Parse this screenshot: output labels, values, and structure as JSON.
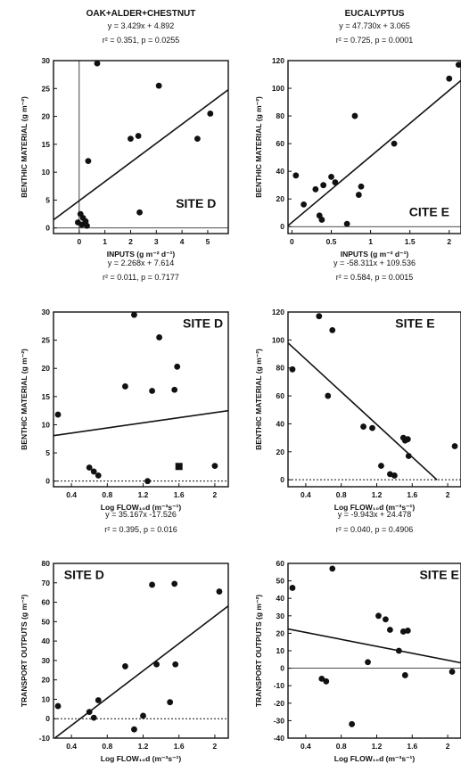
{
  "colors": {
    "ink": "#111111",
    "background": "#ffffff"
  },
  "chart_data": [
    {
      "id": "p1",
      "type": "scatter",
      "header": "OAK+ALDER+CHESTNUT",
      "equation": "y = 3.429x + 4.892",
      "stats": "r² = 0.351,  p = 0.0255",
      "site_label": "SITE   D",
      "xlabel": "INPUTS  (g  m⁻² d⁻¹)",
      "ylabel": "BENTHIC   MATERIAL  (g  m⁻²)",
      "xlim": [
        -1,
        5.8
      ],
      "ylim": [
        -1,
        30
      ],
      "xticks": [
        0,
        1,
        2,
        3,
        4,
        5
      ],
      "yticks": [
        0,
        5,
        10,
        15,
        20,
        25,
        30
      ],
      "zero_line": "solid",
      "zero_vline": true,
      "fit": {
        "slope": 3.429,
        "intercept": 4.892,
        "x_range": [
          -1,
          5.8
        ]
      },
      "points": [
        {
          "x": 0.7,
          "y": 29.5
        },
        {
          "x": 0.35,
          "y": 12
        },
        {
          "x": 2.3,
          "y": 16.5
        },
        {
          "x": 2.0,
          "y": 16
        },
        {
          "x": 3.1,
          "y": 25.5
        },
        {
          "x": 5.1,
          "y": 20.5
        },
        {
          "x": 4.6,
          "y": 16
        },
        {
          "x": 2.35,
          "y": 2.8
        },
        {
          "x": 0.05,
          "y": 2.5
        },
        {
          "x": 0.15,
          "y": 1.8
        },
        {
          "x": 0.25,
          "y": 1.2
        },
        {
          "x": -0.05,
          "y": 1.0
        },
        {
          "x": 0.1,
          "y": 0.6
        },
        {
          "x": 0.3,
          "y": 0.4
        }
      ]
    },
    {
      "id": "p2",
      "type": "scatter",
      "header": "EUCALYPTUS",
      "equation": "y = 47.730x + 3.065",
      "stats": "r² = 0.725,  p = 0.0001",
      "site_label": "CITE   E",
      "xlabel": "INPUTS  (g  m⁻² d⁻¹)",
      "ylabel": "BENTHIC   MATERIAL  (g  m⁻²)",
      "xlim": [
        -0.05,
        2.15
      ],
      "ylim": [
        -5,
        120
      ],
      "xticks": [
        0,
        0.5,
        1,
        1.5,
        2
      ],
      "yticks": [
        0,
        20,
        40,
        60,
        80,
        100,
        120
      ],
      "zero_line": "solid",
      "fit": {
        "slope": 47.73,
        "intercept": 3.065,
        "x_range": [
          -0.05,
          2.15
        ]
      },
      "points": [
        {
          "x": 0.05,
          "y": 37
        },
        {
          "x": 0.15,
          "y": 16
        },
        {
          "x": 0.3,
          "y": 27
        },
        {
          "x": 0.4,
          "y": 30
        },
        {
          "x": 0.5,
          "y": 36
        },
        {
          "x": 0.55,
          "y": 32
        },
        {
          "x": 0.35,
          "y": 8
        },
        {
          "x": 0.38,
          "y": 5
        },
        {
          "x": 0.8,
          "y": 80
        },
        {
          "x": 0.85,
          "y": 23
        },
        {
          "x": 0.88,
          "y": 29
        },
        {
          "x": 0.7,
          "y": 2
        },
        {
          "x": 1.3,
          "y": 60
        },
        {
          "x": 2.0,
          "y": 107
        },
        {
          "x": 2.12,
          "y": 117
        }
      ]
    },
    {
      "id": "p3",
      "type": "scatter",
      "header": "",
      "equation": "y = 2.268x + 7.614",
      "stats": "r² = 0.011,  p = 0.7177",
      "site_label": "SITE   D",
      "xlabel": "Log   FLOW₁₀d   (m⁻³s⁻¹)",
      "ylabel": "BENTHIC   MATERIAL  (g  m⁻²)",
      "xlim": [
        0.2,
        2.15
      ],
      "ylim": [
        -1,
        30
      ],
      "xticks": [
        0.4,
        0.8,
        1.2,
        1.6,
        2
      ],
      "yticks": [
        0,
        5,
        10,
        15,
        20,
        25,
        30
      ],
      "zero_line": "dotted",
      "fit": {
        "slope": 2.268,
        "intercept": 7.614,
        "x_range": [
          0.2,
          2.15
        ]
      },
      "points": [
        {
          "x": 0.25,
          "y": 11.8
        },
        {
          "x": 0.6,
          "y": 2.4
        },
        {
          "x": 0.65,
          "y": 1.7
        },
        {
          "x": 0.7,
          "y": 1.0
        },
        {
          "x": 1.0,
          "y": 16.8
        },
        {
          "x": 1.1,
          "y": 29.5
        },
        {
          "x": 1.3,
          "y": 16
        },
        {
          "x": 1.38,
          "y": 25.5
        },
        {
          "x": 1.55,
          "y": 16.2
        },
        {
          "x": 1.58,
          "y": 20.3
        },
        {
          "x": 1.25,
          "y": 0
        },
        {
          "x": 2.0,
          "y": 2.7
        }
      ],
      "square_points": [
        {
          "x": 1.6,
          "y": 2.6
        }
      ]
    },
    {
      "id": "p4",
      "type": "scatter",
      "header": "",
      "equation": "y = -58.311x + 109.536",
      "stats": "r² = 0.584,  p = 0.0015",
      "site_label": "SITE   E",
      "xlabel": "Log   FLOW₁₀d   (m⁻³s⁻¹)",
      "ylabel": "BENTHIC   MATERIAL  (g  m⁻²)",
      "xlim": [
        0.2,
        2.15
      ],
      "ylim": [
        -5,
        120
      ],
      "xticks": [
        0.4,
        0.8,
        1.2,
        1.6,
        2
      ],
      "yticks": [
        0,
        20,
        40,
        60,
        80,
        100,
        120
      ],
      "zero_line": "dotted",
      "fit": {
        "slope": -58.311,
        "intercept": 109.536,
        "x_range": [
          0.2,
          1.88
        ]
      },
      "points": [
        {
          "x": 0.25,
          "y": 79
        },
        {
          "x": 0.55,
          "y": 117
        },
        {
          "x": 0.7,
          "y": 107
        },
        {
          "x": 0.65,
          "y": 60
        },
        {
          "x": 1.05,
          "y": 38
        },
        {
          "x": 1.15,
          "y": 37
        },
        {
          "x": 1.25,
          "y": 10
        },
        {
          "x": 1.35,
          "y": 4
        },
        {
          "x": 1.4,
          "y": 3
        },
        {
          "x": 1.5,
          "y": 30
        },
        {
          "x": 1.52,
          "y": 28
        },
        {
          "x": 1.55,
          "y": 29
        },
        {
          "x": 1.56,
          "y": 17
        },
        {
          "x": 2.08,
          "y": 24
        }
      ]
    },
    {
      "id": "p5",
      "type": "scatter",
      "header": "",
      "equation": "y = 35.167x  -17.526",
      "stats": "r² = 0.395,  p = 0.016",
      "site_label": "SITE   D",
      "xlabel": "Log   FLOW₁₀d   (m⁻³s⁻¹)",
      "ylabel": "TRANSPORT   OUTPUTS  (g  m⁻²)",
      "xlim": [
        0.2,
        2.15
      ],
      "ylim": [
        -10,
        80
      ],
      "xticks": [
        0.4,
        0.8,
        1.2,
        1.6,
        2
      ],
      "yticks": [
        -10,
        0,
        10,
        20,
        30,
        40,
        50,
        60,
        70,
        80
      ],
      "zero_line": "dotted",
      "fit": {
        "slope": 35.167,
        "intercept": -17.526,
        "x_range": [
          0.22,
          2.15
        ]
      },
      "points": [
        {
          "x": 0.25,
          "y": 6.5
        },
        {
          "x": 0.6,
          "y": 3.5
        },
        {
          "x": 0.65,
          "y": 0.5
        },
        {
          "x": 0.7,
          "y": 9.5
        },
        {
          "x": 1.0,
          "y": 27
        },
        {
          "x": 1.1,
          "y": -5.5
        },
        {
          "x": 1.2,
          "y": 1.5
        },
        {
          "x": 1.3,
          "y": 69
        },
        {
          "x": 1.35,
          "y": 28
        },
        {
          "x": 1.5,
          "y": 8.5
        },
        {
          "x": 1.55,
          "y": 69.5
        },
        {
          "x": 1.56,
          "y": 28
        },
        {
          "x": 2.05,
          "y": 65.5
        }
      ]
    },
    {
      "id": "p6",
      "type": "scatter",
      "header": "",
      "equation": "y = -9.943x + 24.478",
      "stats": "r² = 0.040,  p = 0.4906",
      "site_label": "SITE   E",
      "xlabel": "Log   FLOW₁₀d   (m⁻³s⁻¹)",
      "ylabel": "TRANSPORT   OUTPUTS  (g  m⁻²)",
      "xlim": [
        0.2,
        2.15
      ],
      "ylim": [
        -40,
        60
      ],
      "xticks": [
        0.4,
        0.8,
        1.2,
        1.6,
        2
      ],
      "yticks": [
        -40,
        -30,
        -20,
        -10,
        0,
        10,
        20,
        30,
        40,
        50,
        60
      ],
      "zero_line": "solid",
      "fit": {
        "slope": -9.943,
        "intercept": 24.478,
        "x_range": [
          0.2,
          2.15
        ]
      },
      "points": [
        {
          "x": 0.25,
          "y": 46
        },
        {
          "x": 0.7,
          "y": 57
        },
        {
          "x": 0.58,
          "y": -6
        },
        {
          "x": 0.63,
          "y": -7.5
        },
        {
          "x": 0.92,
          "y": -32
        },
        {
          "x": 1.1,
          "y": 3.5
        },
        {
          "x": 1.22,
          "y": 30
        },
        {
          "x": 1.3,
          "y": 28
        },
        {
          "x": 1.35,
          "y": 22
        },
        {
          "x": 1.45,
          "y": 10
        },
        {
          "x": 1.5,
          "y": 21
        },
        {
          "x": 1.55,
          "y": 21.5
        },
        {
          "x": 1.52,
          "y": -4
        },
        {
          "x": 2.05,
          "y": -2
        }
      ]
    }
  ]
}
